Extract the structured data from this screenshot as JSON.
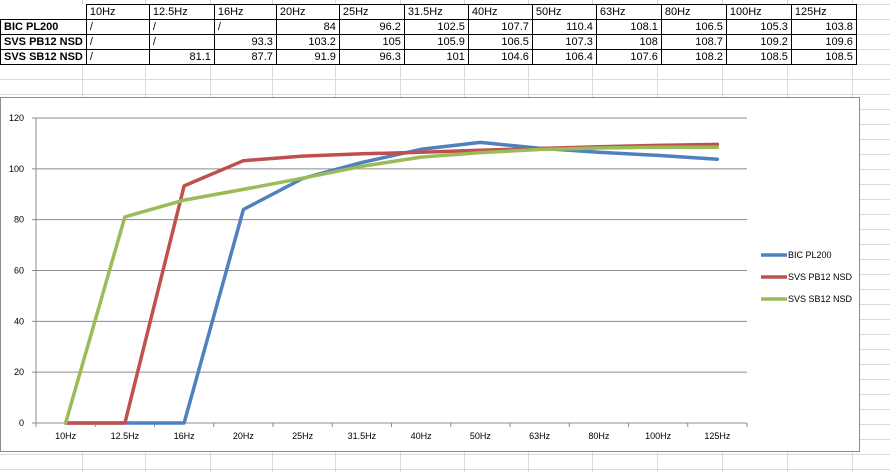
{
  "table": {
    "headers": [
      "10Hz",
      "12.5Hz",
      "16Hz",
      "20Hz",
      "25Hz",
      "31.5Hz",
      "40Hz",
      "50Hz",
      "63Hz",
      "80Hz",
      "100Hz",
      "125Hz"
    ],
    "rows": [
      {
        "label": "BIC PL200",
        "cells": [
          "/",
          "/",
          "/",
          "84",
          "96.2",
          "102.5",
          "107.7",
          "110.4",
          "108.1",
          "106.5",
          "105.3",
          "103.8"
        ]
      },
      {
        "label": "SVS PB12 NSD",
        "cells": [
          "/",
          "/",
          "93.3",
          "103.2",
          "105",
          "105.9",
          "106.5",
          "107.3",
          "108",
          "108.7",
          "109.2",
          "109.6"
        ]
      },
      {
        "label": "SVS SB12 NSD",
        "cells": [
          "/",
          "81.1",
          "87.7",
          "91.9",
          "96.3",
          "101",
          "104.6",
          "106.4",
          "107.6",
          "108.2",
          "108.5",
          "108.5"
        ]
      }
    ]
  },
  "chart_data": {
    "type": "line",
    "title": "",
    "xlabel": "",
    "ylabel": "",
    "categories": [
      "10Hz",
      "12.5Hz",
      "16Hz",
      "20Hz",
      "25Hz",
      "31.5Hz",
      "40Hz",
      "50Hz",
      "63Hz",
      "80Hz",
      "100Hz",
      "125Hz"
    ],
    "ylim": [
      0,
      120
    ],
    "yticks": [
      "0",
      "20",
      "40",
      "60",
      "80",
      "100",
      "120"
    ],
    "grid": "horizontal",
    "legend_position": "right",
    "series": [
      {
        "name": "BIC PL200",
        "color": "#4f81bd",
        "values": [
          0,
          0,
          0,
          84,
          96.2,
          102.5,
          107.7,
          110.4,
          108.1,
          106.5,
          105.3,
          103.8
        ]
      },
      {
        "name": "SVS PB12 NSD",
        "color": "#c0504d",
        "values": [
          0,
          0,
          93.3,
          103.2,
          105,
          105.9,
          106.5,
          107.3,
          108,
          108.7,
          109.2,
          109.6
        ]
      },
      {
        "name": "SVS SB12 NSD",
        "color": "#9bbb59",
        "values": [
          0,
          81.1,
          87.7,
          91.9,
          96.3,
          101,
          104.6,
          106.4,
          107.6,
          108.2,
          108.5,
          108.5
        ]
      }
    ]
  }
}
